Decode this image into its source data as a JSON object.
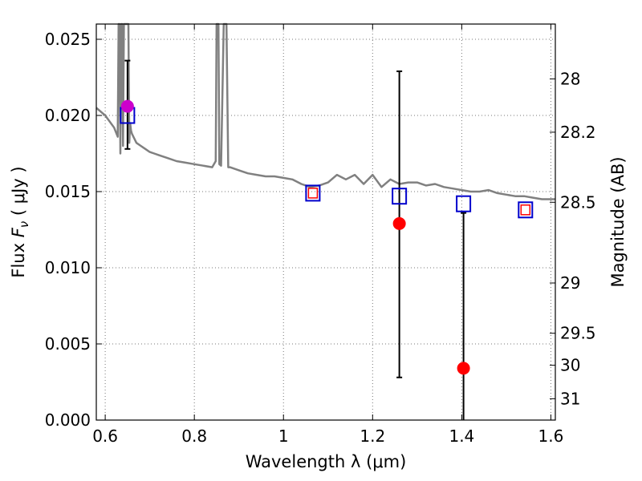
{
  "chart_data": {
    "type": "scatter",
    "xlabel": "Wavelength  λ (μm)",
    "ylabel": "Flux  F_ν  ( μJy )",
    "ylabel_parts": {
      "prefix": "Flux  ",
      "symbol": "F",
      "subscript": "ν",
      "suffix": "  ( μJy )"
    },
    "y2label": "Magnitude (AB)",
    "xlim": [
      0.58,
      1.61
    ],
    "ylim": [
      0.0,
      0.026
    ],
    "grid": true,
    "xticks": [
      0.6,
      0.8,
      1.0,
      1.2,
      1.4,
      1.6
    ],
    "xtick_labels": [
      "0.6",
      "0.8",
      "1",
      "1.2",
      "1.4",
      "1.6"
    ],
    "yticks": [
      0.0,
      0.005,
      0.01,
      0.015,
      0.02,
      0.025
    ],
    "ytick_labels": [
      "0.000",
      "0.005",
      "0.010",
      "0.015",
      "0.020",
      "0.025"
    ],
    "y2ticks": [
      {
        "label": "28",
        "flux": 0.0224
      },
      {
        "label": "28.2",
        "flux": 0.0189
      },
      {
        "label": "28.5",
        "flux": 0.0143
      },
      {
        "label": "29",
        "flux": 0.009
      },
      {
        "label": "29.5",
        "flux": 0.0057
      },
      {
        "label": "30",
        "flux": 0.0036
      },
      {
        "label": "31",
        "flux": 0.0014
      }
    ],
    "colors": {
      "model": "#808080",
      "observed": "#ff0000",
      "observed_highlight": "#cc00cc",
      "model_band": "#0000cc",
      "model_band_inner": "#ff0000",
      "errorbar": "#000000",
      "grid": "#777777"
    },
    "series": [
      {
        "name": "Model SED",
        "type": "line",
        "x": [
          0.58,
          0.6,
          0.62,
          0.628,
          0.63,
          0.632,
          0.634,
          0.636,
          0.638,
          0.64,
          0.642,
          0.644,
          0.646,
          0.648,
          0.65,
          0.652,
          0.654,
          0.656,
          0.658,
          0.66,
          0.665,
          0.67,
          0.68,
          0.69,
          0.7,
          0.71,
          0.72,
          0.74,
          0.76,
          0.78,
          0.8,
          0.82,
          0.84,
          0.848,
          0.85,
          0.852,
          0.854,
          0.856,
          0.86,
          0.866,
          0.868,
          0.87,
          0.872,
          0.876,
          0.88,
          0.9,
          0.92,
          0.94,
          0.96,
          0.98,
          1.0,
          1.02,
          1.04,
          1.06,
          1.08,
          1.1,
          1.12,
          1.14,
          1.16,
          1.18,
          1.2,
          1.22,
          1.24,
          1.26,
          1.28,
          1.3,
          1.32,
          1.34,
          1.36,
          1.38,
          1.4,
          1.42,
          1.44,
          1.46,
          1.48,
          1.5,
          1.52,
          1.54,
          1.56,
          1.58,
          1.6,
          1.61
        ],
        "y": [
          0.0205,
          0.02,
          0.0192,
          0.0186,
          0.026,
          0.026,
          0.0175,
          0.026,
          0.026,
          0.018,
          0.026,
          0.026,
          0.026,
          0.026,
          0.026,
          0.026,
          0.0182,
          0.0195,
          0.019,
          0.0188,
          0.0185,
          0.0182,
          0.018,
          0.0178,
          0.0176,
          0.0175,
          0.0174,
          0.0172,
          0.017,
          0.0169,
          0.0168,
          0.0167,
          0.0166,
          0.017,
          0.026,
          0.026,
          0.026,
          0.0168,
          0.0167,
          0.026,
          0.026,
          0.026,
          0.026,
          0.0166,
          0.0166,
          0.0164,
          0.0162,
          0.0161,
          0.016,
          0.016,
          0.0159,
          0.0158,
          0.0155,
          0.0153,
          0.0154,
          0.0156,
          0.0161,
          0.0158,
          0.0161,
          0.0155,
          0.0161,
          0.0153,
          0.0158,
          0.0155,
          0.0156,
          0.0156,
          0.0154,
          0.0155,
          0.0153,
          0.0152,
          0.0151,
          0.015,
          0.015,
          0.0151,
          0.0149,
          0.0148,
          0.0147,
          0.0147,
          0.0146,
          0.0145,
          0.0145,
          0.0145
        ]
      },
      {
        "name": "Model band flux",
        "type": "scatter",
        "marker": "square",
        "x": [
          0.65,
          1.066,
          1.26,
          1.404,
          1.543
        ],
        "y": [
          0.02,
          0.0149,
          0.0147,
          0.0142,
          0.0138
        ]
      },
      {
        "name": "Observed flux",
        "type": "scatter",
        "marker": "circle",
        "x": [
          0.65,
          1.26,
          1.404
        ],
        "y": [
          0.0206,
          0.0129,
          0.0034
        ],
        "yerr_low": [
          0.0178,
          0.0028,
          0.0
        ],
        "yerr_high": [
          0.0236,
          0.0229,
          0.0136
        ]
      }
    ]
  }
}
